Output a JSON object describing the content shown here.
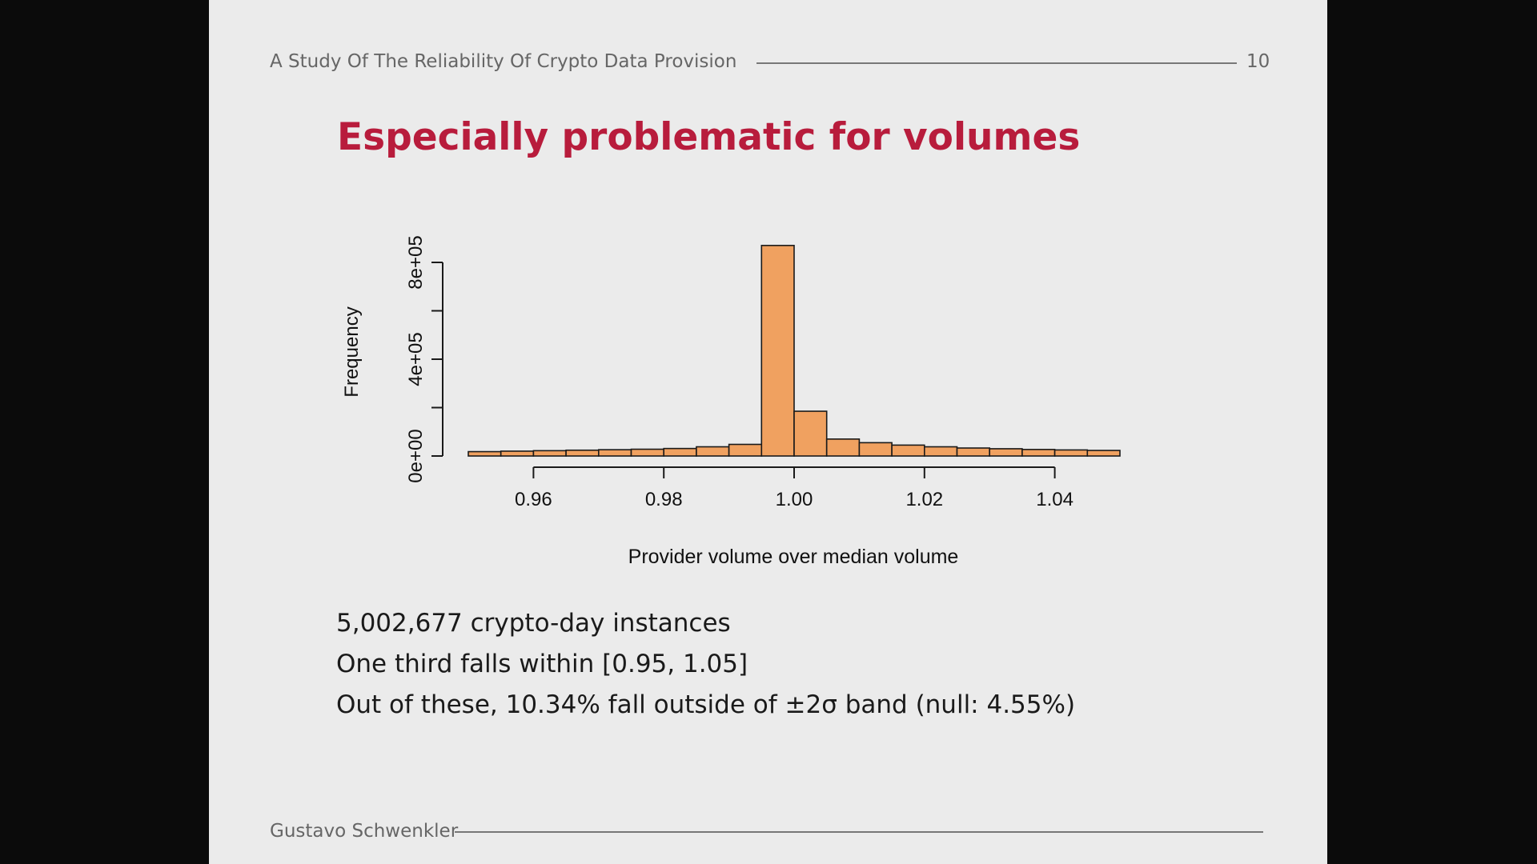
{
  "header": {
    "title": "A Study Of The Reliability Of Crypto Data Provision",
    "page_number": "10"
  },
  "slide_title": "Especially problematic for volumes",
  "chart_data": {
    "type": "bar",
    "title": "",
    "xlabel": "Provider volume over median volume",
    "ylabel": "Frequency",
    "bin_width": 0.005,
    "bins": [
      0.95,
      0.955,
      0.96,
      0.965,
      0.97,
      0.975,
      0.98,
      0.985,
      0.99,
      0.995,
      1.0,
      1.005,
      1.01,
      1.015,
      1.02,
      1.025,
      1.03,
      1.035,
      1.04,
      1.045
    ],
    "values": [
      18000,
      20000,
      22000,
      24000,
      26000,
      28000,
      31000,
      38000,
      48000,
      870000,
      185000,
      70000,
      55000,
      45000,
      38000,
      33000,
      30000,
      27000,
      25000,
      23000
    ],
    "x_ticks": [
      0.96,
      0.98,
      1.0,
      1.02,
      1.04
    ],
    "x_tick_labels": [
      "0.96",
      "0.98",
      "1.00",
      "1.02",
      "1.04"
    ],
    "y_ticks": [
      0,
      200000,
      400000,
      600000,
      800000
    ],
    "y_tick_labels": [
      "0e+00",
      "4e+05",
      "8e+05"
    ],
    "xlim": [
      0.95,
      1.05
    ],
    "ylim": [
      0,
      800000
    ],
    "bar_color": "#f0a160",
    "grid": false
  },
  "body": {
    "line1": "5,002,677 crypto-day instances",
    "line2": "One third falls within [0.95, 1.05]",
    "line3": "Out of these, 10.34% fall outside of ±2σ band (null: 4.55%)"
  },
  "footer": {
    "author": "Gustavo Schwenkler"
  }
}
